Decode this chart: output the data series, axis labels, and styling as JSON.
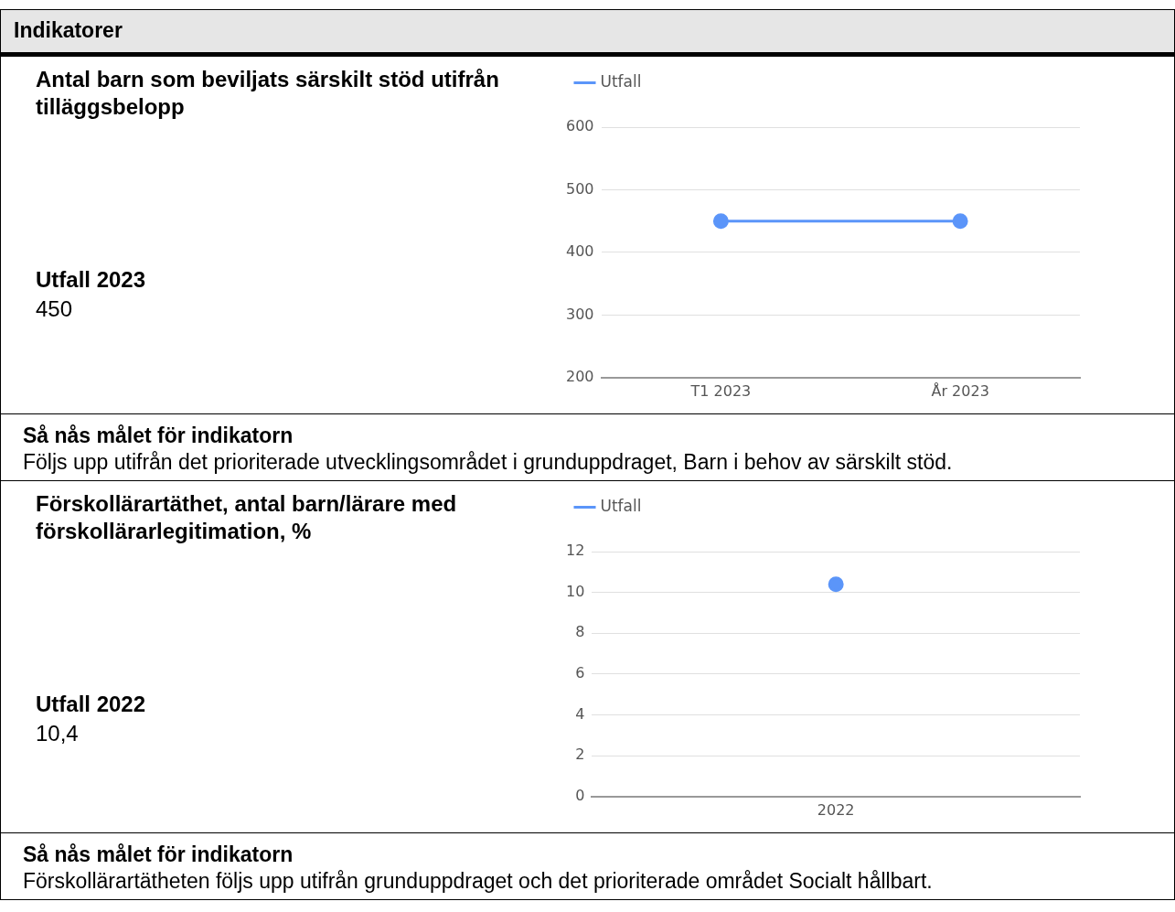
{
  "chart_data": [
    {
      "type": "line",
      "title": "Antal barn som beviljats särskilt stöd utifrån tilläggsbelopp",
      "categories": [
        "T1 2023",
        "År 2023"
      ],
      "series": [
        {
          "name": "Utfall",
          "color": "#5b95f9",
          "values": [
            450,
            450
          ]
        }
      ],
      "ylim": [
        200,
        600
      ],
      "yticks": [
        200,
        300,
        400,
        500,
        600
      ],
      "grid": "y",
      "legend": "top left",
      "marker": "circle",
      "annotations": [
        "Indikatorer",
        "Utfall 2023",
        "450",
        "Så nås målet för indikatorn",
        "Följs upp utifrån det prioriterade utvecklingsområdet i grunduppdraget, Barn i behov av särskilt stöd."
      ]
    },
    {
      "type": "line",
      "title": "Förskollärartäthet, antal barn/lärare med förskollärarlegitimation, %",
      "categories": [
        "2022"
      ],
      "series": [
        {
          "name": "Utfall",
          "color": "#5b95f9",
          "values": [
            10.4
          ]
        }
      ],
      "ylim": [
        0,
        12
      ],
      "yticks": [
        0,
        2,
        4,
        6,
        8,
        10,
        12
      ],
      "grid": "y",
      "legend": "top left",
      "marker": "circle",
      "annotations": [
        "Utfall 2022",
        "10,4",
        "Så nås målet för indikatorn",
        "Förskollärartätheten följs upp utifrån grunduppdraget och det prioriterade området Socialt hållbart."
      ]
    }
  ]
}
